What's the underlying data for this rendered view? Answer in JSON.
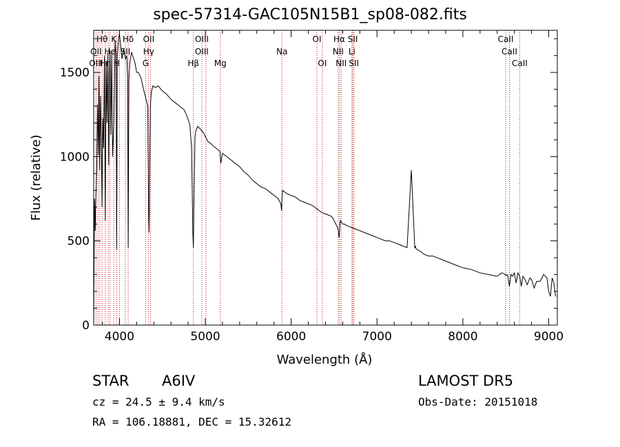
{
  "chart_data": {
    "type": "line",
    "title": "spec-57314-GAC105N15B1_sp08-082.fits",
    "xlabel": "Wavelength (Å)",
    "ylabel": "Flux (relative)",
    "xlim": [
      3700,
      9100
    ],
    "ylim": [
      0,
      1750
    ],
    "xticks": [
      4000,
      5000,
      6000,
      7000,
      8000,
      9000
    ],
    "yticks": [
      0,
      500,
      1000,
      1500
    ],
    "grid": false,
    "line_color": "#000000",
    "marker_color": "#cc0000",
    "series": [
      {
        "x": [
          3700,
          3710,
          3718,
          3722,
          3728,
          3735,
          3745,
          3755,
          3762,
          3770,
          3780,
          3790,
          3797,
          3806,
          3815,
          3825,
          3835,
          3845,
          3855,
          3865,
          3875,
          3883,
          3890,
          3900,
          3910,
          3920,
          3935,
          3950,
          3960,
          3968,
          3975,
          3990,
          4000,
          4010,
          4030,
          4050,
          4070,
          4085,
          4095,
          4102,
          4110,
          4120,
          4140,
          4160,
          4180,
          4200,
          4220,
          4250,
          4280,
          4300,
          4320,
          4330,
          4340,
          4345,
          4350,
          4360,
          4370,
          4390,
          4420,
          4450,
          4500,
          4550,
          4600,
          4650,
          4700,
          4750,
          4780,
          4800,
          4820,
          4840,
          4850,
          4855,
          4861,
          4866,
          4872,
          4880,
          4890,
          4910,
          4930,
          4950,
          4980,
          5000,
          5030,
          5060,
          5100,
          5150,
          5170,
          5175,
          5180,
          5200,
          5250,
          5300,
          5350,
          5400,
          5450,
          5500,
          5550,
          5600,
          5650,
          5700,
          5750,
          5800,
          5850,
          5880,
          5889,
          5893,
          5900,
          5950,
          6000,
          6050,
          6100,
          6150,
          6200,
          6250,
          6300,
          6350,
          6400,
          6450,
          6480,
          6500,
          6520,
          6540,
          6550,
          6558,
          6563,
          6568,
          6575,
          6585,
          6600,
          6620,
          6650,
          6700,
          6750,
          6800,
          6850,
          6900,
          6950,
          7000,
          7050,
          7100,
          7150,
          7200,
          7250,
          7300,
          7350,
          7400,
          7440,
          7445,
          7448,
          7450,
          7455,
          7460,
          7500,
          7550,
          7600,
          7650,
          7700,
          7750,
          7800,
          7850,
          7900,
          7950,
          8000,
          8100,
          8200,
          8300,
          8400,
          8450,
          8480,
          8500,
          8520,
          8542,
          8560,
          8580,
          8600,
          8620,
          8640,
          8662,
          8680,
          8700,
          8720,
          8750,
          8780,
          8800,
          8830,
          8860,
          8900,
          8940,
          8980,
          9000,
          9020,
          9040,
          9060,
          9080
        ],
        "y": [
          0,
          750,
          560,
          690,
          800,
          920,
          1310,
          1010,
          1480,
          920,
          1360,
          1060,
          700,
          1230,
          1050,
          1600,
          620,
          1570,
          1200,
          1620,
          950,
          1460,
          1630,
          1130,
          1620,
          1000,
          1200,
          1690,
          1610,
          450,
          1600,
          1700,
          1730,
          1680,
          1580,
          1640,
          1580,
          1600,
          1480,
          460,
          1450,
          1550,
          1620,
          1590,
          1560,
          1500,
          1500,
          1470,
          1400,
          1360,
          1320,
          1300,
          650,
          550,
          820,
          1300,
          1380,
          1420,
          1410,
          1420,
          1390,
          1370,
          1340,
          1320,
          1300,
          1280,
          1250,
          1220,
          1190,
          1050,
          720,
          550,
          460,
          650,
          900,
          1120,
          1150,
          1180,
          1170,
          1160,
          1140,
          1120,
          1090,
          1080,
          1060,
          1040,
          1030,
          1000,
          960,
          1020,
          1000,
          980,
          960,
          940,
          910,
          890,
          860,
          840,
          820,
          810,
          790,
          770,
          750,
          720,
          680,
          750,
          800,
          780,
          770,
          760,
          740,
          730,
          720,
          710,
          690,
          670,
          660,
          650,
          640,
          620,
          600,
          580,
          560,
          520,
          540,
          600,
          620,
          610,
          600,
          600,
          590,
          580,
          570,
          560,
          550,
          540,
          530,
          520,
          510,
          500,
          500,
          490,
          480,
          470,
          460,
          920,
          460,
          465,
          470,
          460,
          455,
          450,
          440,
          420,
          410,
          410,
          400,
          390,
          380,
          370,
          360,
          350,
          340,
          330,
          310,
          300,
          290,
          310,
          305,
          295,
          300,
          230,
          300,
          290,
          310,
          250,
          310,
          290,
          230,
          290,
          275,
          240,
          280,
          270,
          220,
          260,
          260,
          300,
          280,
          200,
          170,
          280,
          250,
          170
        ]
      }
    ],
    "lines_top": [
      {
        "label": "Hθ",
        "x": 3798,
        "row": 0
      },
      {
        "label": "K",
        "x": 3934,
        "row": 0
      },
      {
        "label": "Hδ",
        "x": 4102,
        "row": 0
      },
      {
        "label": "OII",
        "x": 4341,
        "row": 0
      },
      {
        "label": "OIII",
        "x": 4960,
        "row": 0
      },
      {
        "label": "OI",
        "x": 6300,
        "row": 0
      },
      {
        "label": "Hα",
        "x": 6560,
        "row": 0
      },
      {
        "label": "SII",
        "x": 6718,
        "row": 0
      },
      {
        "label": "CaII",
        "x": 8498,
        "row": 0
      },
      {
        "label": "OII",
        "x": 3727,
        "row": 1
      },
      {
        "label": "He",
        "x": 3889,
        "row": 1
      },
      {
        "label": "SII",
        "x": 4069,
        "row": 1
      },
      {
        "label": "Hγ",
        "x": 4340,
        "row": 1
      },
      {
        "label": "OIII",
        "x": 4959,
        "row": 1
      },
      {
        "label": "Na",
        "x": 5893,
        "row": 1
      },
      {
        "label": "NII",
        "x": 6548,
        "row": 1
      },
      {
        "label": "Li",
        "x": 6708,
        "row": 1
      },
      {
        "label": "CaII",
        "x": 8542,
        "row": 1
      },
      {
        "label": "OIII",
        "x": 3727,
        "row": 2
      },
      {
        "label": "Hη",
        "x": 3835,
        "row": 2
      },
      {
        "label": "H",
        "x": 3968,
        "row": 2
      },
      {
        "label": "G",
        "x": 4305,
        "row": 2
      },
      {
        "label": "Hβ",
        "x": 4861,
        "row": 2
      },
      {
        "label": "Mg",
        "x": 5175,
        "row": 2
      },
      {
        "label": "OI",
        "x": 6363,
        "row": 2
      },
      {
        "label": "NII",
        "x": 6583,
        "row": 2
      },
      {
        "label": "SII",
        "x": 6731,
        "row": 2
      },
      {
        "label": "CaII",
        "x": 8662,
        "row": 2
      }
    ],
    "line_marks_x": [
      3727,
      3750,
      3771,
      3798,
      3835,
      3869,
      3889,
      3934,
      3968,
      4000,
      4069,
      4102,
      4305,
      4340,
      4363,
      4861,
      4959,
      5007,
      5175,
      5893,
      6300,
      6363,
      6548,
      6563,
      6583,
      6708,
      6718,
      6731,
      8498,
      8542,
      8662
    ]
  },
  "info": {
    "object_type": "STAR",
    "subclass": "A6IV",
    "survey": "LAMOST DR5",
    "redshift": "cz = 24.5 ± 9.4 km/s",
    "obs_date": "Obs-Date: 20151018",
    "coords": "RA = 106.18881, DEC =  15.32612"
  }
}
